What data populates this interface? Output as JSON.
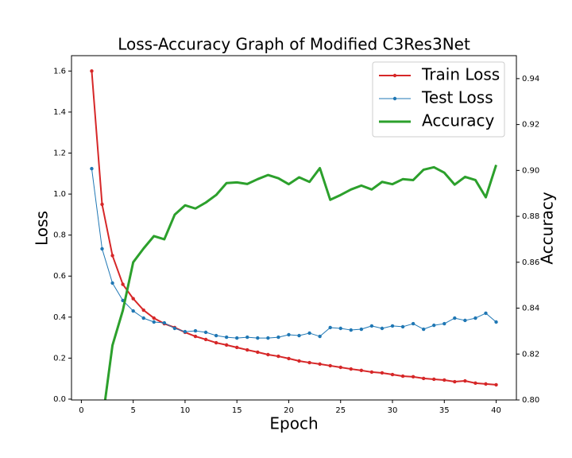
{
  "chart_data": {
    "type": "line",
    "title": "Loss-Accuracy Graph of Modified C3Res3Net",
    "x_label": "Epoch",
    "y_label": "Loss",
    "y2_label": "Accuracy",
    "x": [
      1,
      2,
      3,
      4,
      5,
      6,
      7,
      8,
      9,
      10,
      11,
      12,
      13,
      14,
      15,
      16,
      17,
      18,
      19,
      20,
      21,
      22,
      23,
      24,
      25,
      26,
      27,
      28,
      29,
      30,
      31,
      32,
      33,
      34,
      35,
      36,
      37,
      38,
      39,
      40
    ],
    "xlim": [
      -0.95,
      41.95
    ],
    "xticks": [
      0,
      5,
      10,
      15,
      20,
      25,
      30,
      35,
      40
    ],
    "ylim": [
      -0.004,
      1.675
    ],
    "yticks": [
      {
        "value": 0,
        "label": "0.0"
      },
      0.2,
      0.4,
      0.6,
      0.8,
      {
        "value": 1,
        "label": "1.0"
      },
      1.2,
      1.4,
      1.6
    ],
    "y2lim": [
      0.8,
      0.95
    ],
    "y2ticks": [
      {
        "value": 0.8,
        "label": "0.80"
      },
      0.82,
      0.84,
      0.86,
      0.88,
      {
        "value": 0.9,
        "label": "0.90"
      },
      0.92,
      0.94
    ],
    "legend": "upper right",
    "series": [
      {
        "name": "Train Loss",
        "color": "#d62728",
        "marker": true,
        "line_width": 2,
        "values": [
          1.6,
          0.95,
          0.7,
          0.56,
          0.49,
          0.434,
          0.395,
          0.368,
          0.349,
          0.326,
          0.306,
          0.291,
          0.275,
          0.264,
          0.252,
          0.24,
          0.229,
          0.217,
          0.209,
          0.198,
          0.186,
          0.178,
          0.171,
          0.163,
          0.155,
          0.147,
          0.14,
          0.132,
          0.128,
          0.12,
          0.112,
          0.109,
          0.101,
          0.097,
          0.093,
          0.085,
          0.089,
          0.078,
          0.074,
          0.07
        ]
      },
      {
        "name": "Test Loss",
        "color": "#1f77b4",
        "marker": true,
        "line_width": 1,
        "values": [
          1.124,
          0.733,
          0.566,
          0.481,
          0.43,
          0.395,
          0.376,
          0.372,
          0.345,
          0.329,
          0.333,
          0.326,
          0.31,
          0.302,
          0.298,
          0.302,
          0.298,
          0.298,
          0.302,
          0.314,
          0.31,
          0.322,
          0.306,
          0.349,
          0.345,
          0.337,
          0.341,
          0.357,
          0.345,
          0.357,
          0.353,
          0.368,
          0.341,
          0.36,
          0.368,
          0.395,
          0.384,
          0.395,
          0.419,
          0.376
        ]
      },
      {
        "name": "Accuracy",
        "color": "#2ca02c",
        "marker": false,
        "line_width": 3,
        "axis": "y2",
        "values": [
          null,
          0.79,
          0.8238,
          0.839,
          0.86,
          0.866,
          0.8714,
          0.87,
          0.8807,
          0.8848,
          0.8834,
          0.886,
          0.8893,
          0.8945,
          0.8948,
          0.8941,
          0.8962,
          0.898,
          0.8966,
          0.894,
          0.897,
          0.895,
          0.901,
          0.8872,
          0.8893,
          0.8917,
          0.8934,
          0.8917,
          0.895,
          0.894,
          0.8962,
          0.8958,
          0.9003,
          0.9014,
          0.899,
          0.8938,
          0.8972,
          0.8958,
          0.8883,
          0.9024
        ]
      }
    ]
  }
}
